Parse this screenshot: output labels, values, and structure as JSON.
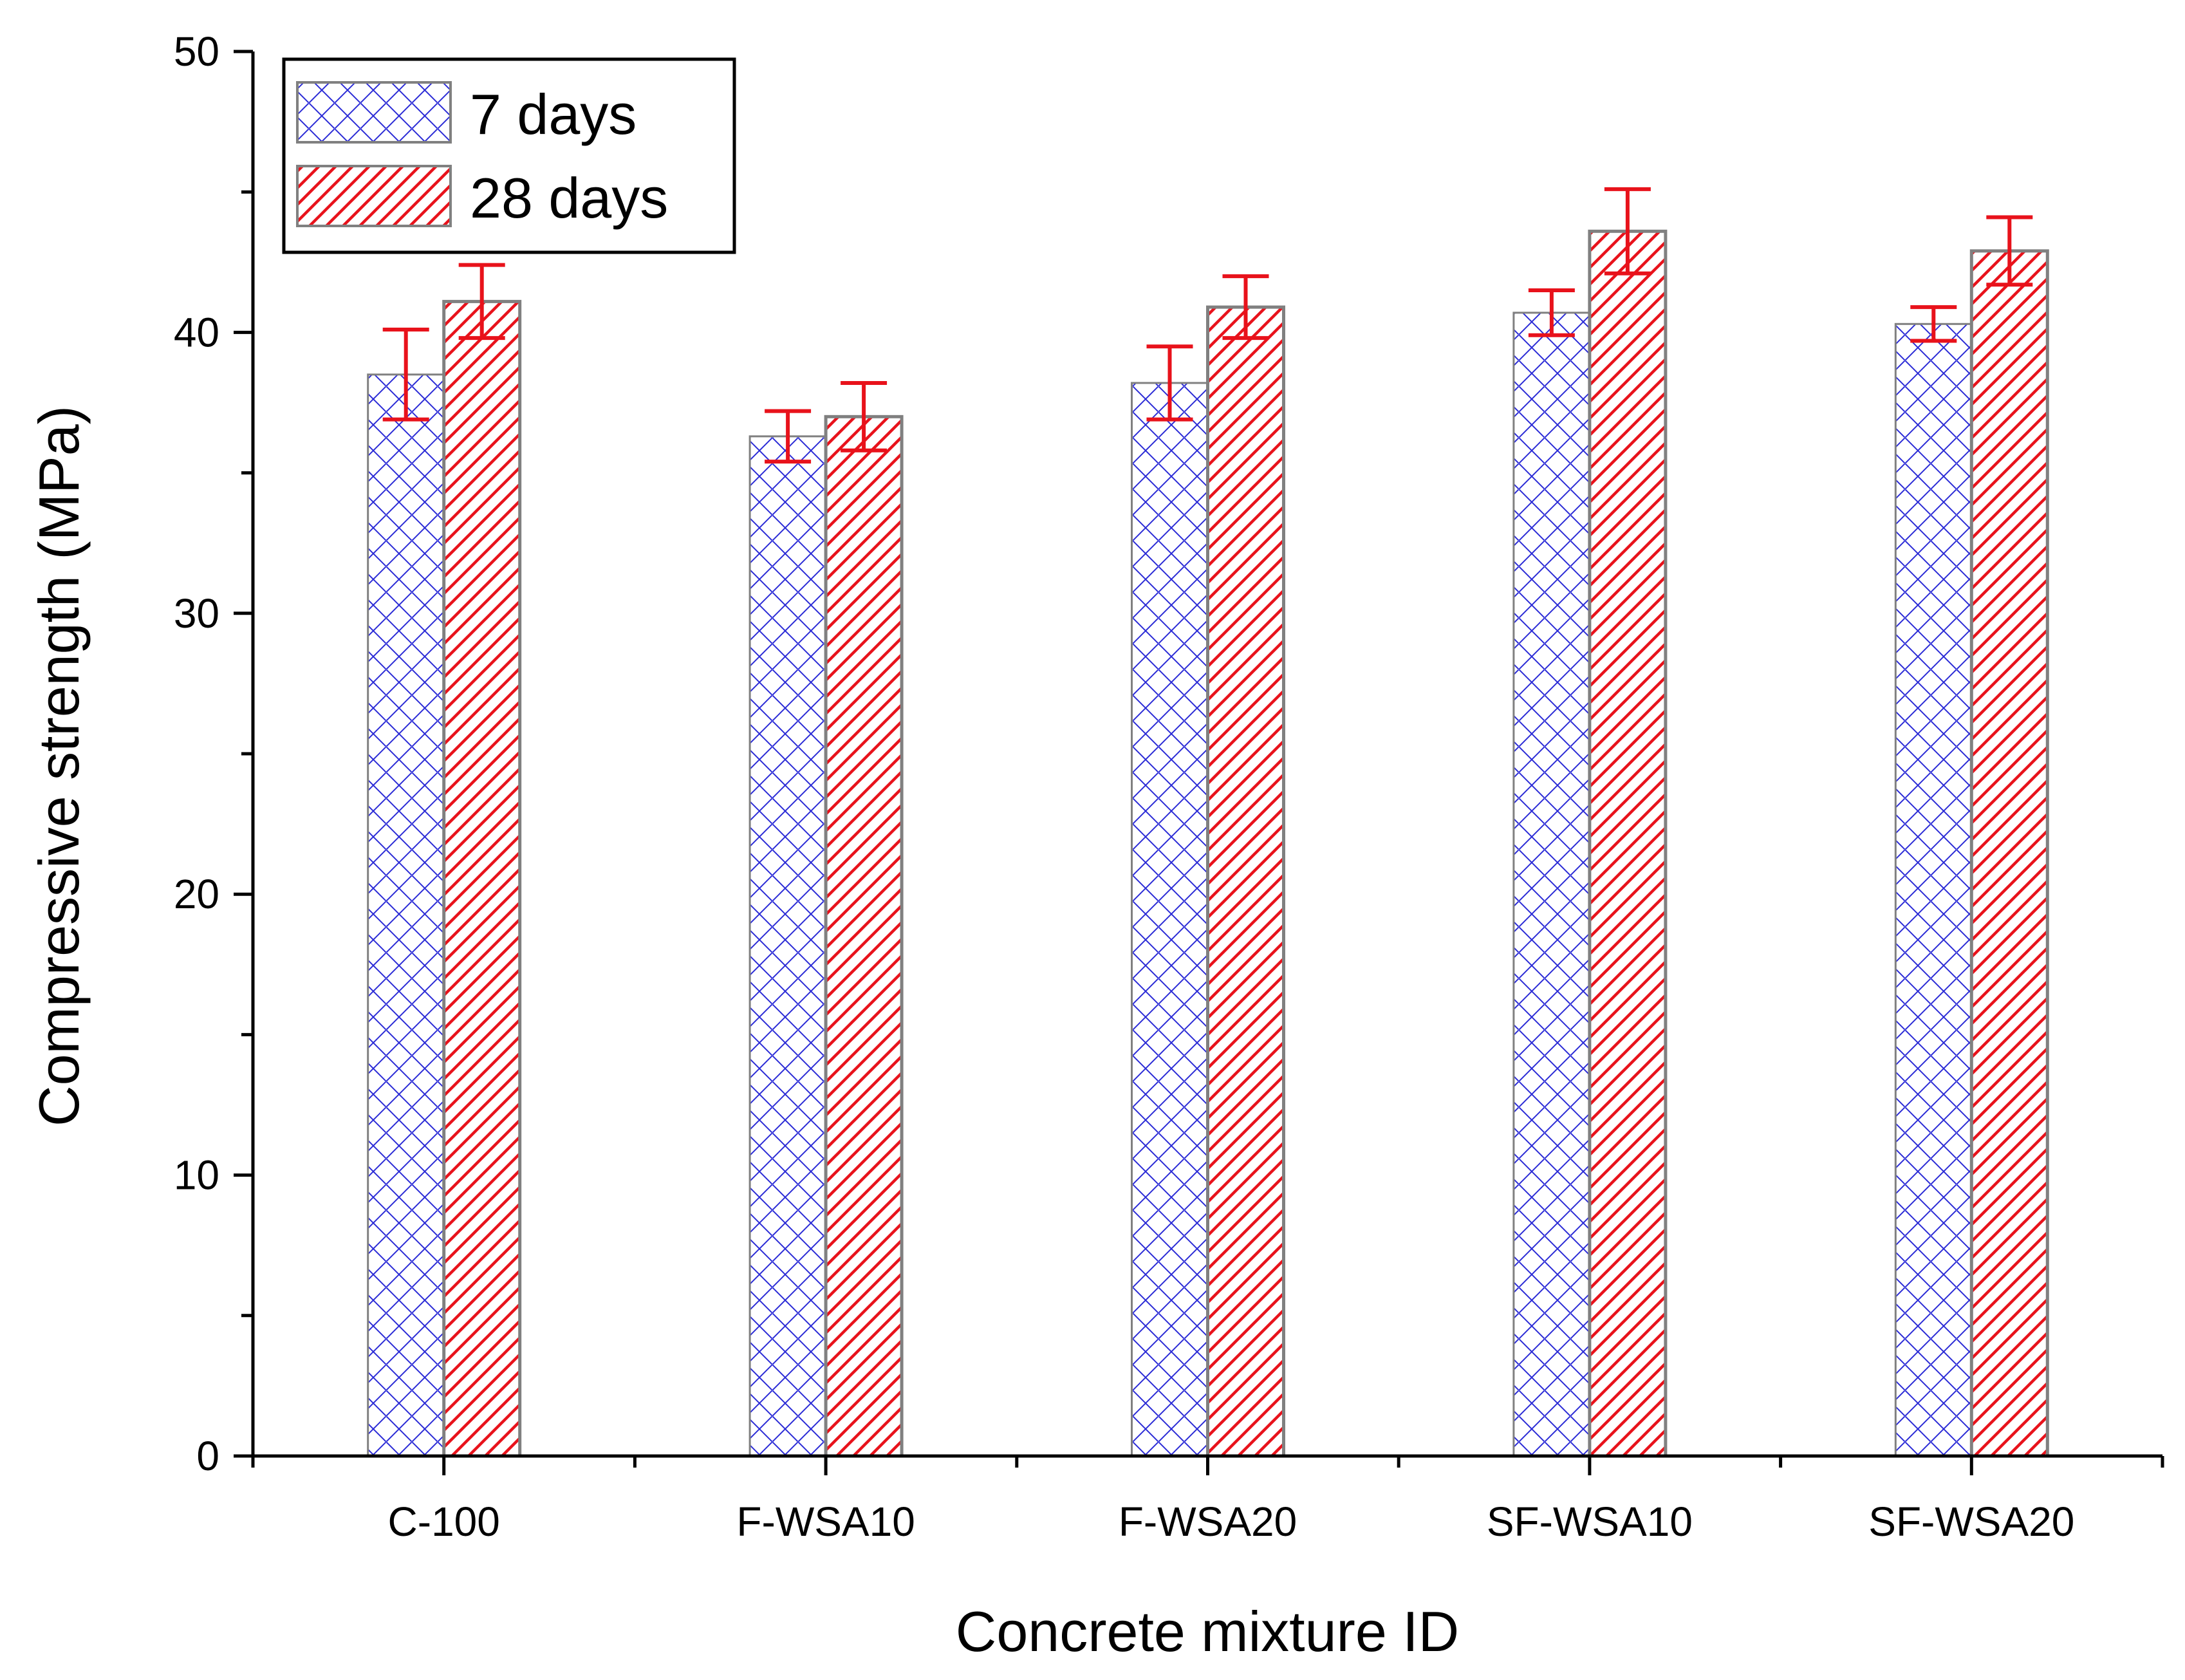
{
  "chart_data": {
    "type": "bar",
    "xlabel": "Concrete mixture ID",
    "ylabel": "Compressive strength (MPa)",
    "ylim": [
      0,
      50
    ],
    "yticks": [
      0,
      10,
      20,
      30,
      40,
      50
    ],
    "y_minor_step": 5,
    "grid": false,
    "legend_position": "top-left",
    "categories": [
      "C-100",
      "F-WSA10",
      "F-WSA20",
      "SF-WSA10",
      "SF-WSA20"
    ],
    "series": [
      {
        "name": "7 days",
        "pattern": "crosshatch",
        "color": "#2b2bd6",
        "values": [
          38.5,
          36.3,
          38.2,
          40.7,
          40.3
        ],
        "errors": [
          1.6,
          0.9,
          1.3,
          0.8,
          0.6
        ]
      },
      {
        "name": "28 days",
        "pattern": "diagonal",
        "color": "#e8121b",
        "values": [
          41.1,
          37.0,
          40.9,
          43.6,
          42.9
        ],
        "errors": [
          1.3,
          1.2,
          1.1,
          1.5,
          1.2
        ]
      }
    ],
    "error_bar_color": "#e8121b",
    "bar_outline_color": "#808080"
  }
}
